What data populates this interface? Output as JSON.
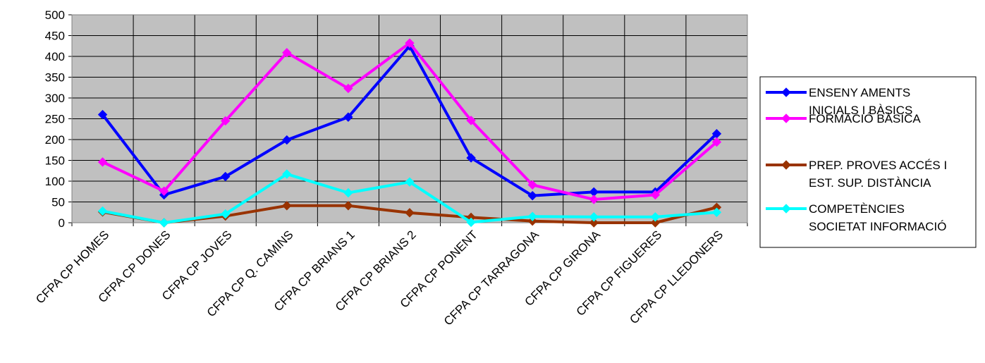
{
  "chart_data": {
    "type": "line",
    "title": "",
    "xlabel": "",
    "ylabel": "",
    "ylim": [
      0,
      500
    ],
    "y_ticks": [
      "0",
      "50",
      "100",
      "150",
      "200",
      "250",
      "300",
      "350",
      "400",
      "450",
      "500"
    ],
    "grid": true,
    "plot_background": "#c0c0c0",
    "legend_position": "right",
    "categories": [
      "CFPA CP HOMES",
      "CFPA CP DONES",
      "CFPA CP JOVES",
      "CFPA CP Q. CAMINS",
      "CFPA CP BRIANS 1",
      "CFPA CP BRIANS 2",
      "CFPA CP PONENT",
      "CFPA CP TARRAGONA",
      "CFPA CP GIRONA",
      "CFPA CP FIGUERES",
      "CFPA CP LLEDONERS"
    ],
    "series": [
      {
        "name": "ENSENYAMENTS INICIALS I BÀSICS",
        "legend_lines": [
          "ENSENY AMENTS",
          "INICIALS I BÀSICS"
        ],
        "color": "#0000ff",
        "values": [
          260,
          67,
          111,
          199,
          254,
          425,
          156,
          65,
          74,
          74,
          214
        ]
      },
      {
        "name": "FORMACIÓ BÀSICA",
        "legend_lines": [
          "FORMACIÓ BÀSICA"
        ],
        "color": "#ff00ff",
        "values": [
          146,
          76,
          245,
          409,
          323,
          432,
          246,
          91,
          56,
          67,
          194
        ]
      },
      {
        "name": "PREP. PROVES ACCÉS I EST. SUP. DISTÀNCIA",
        "legend_lines": [
          "PREP. PROVES ACCÉS I",
          "EST. SUP. DISTÀNCIA"
        ],
        "color": "#993300",
        "values": [
          26,
          0,
          16,
          41,
          41,
          24,
          13,
          4,
          0,
          0,
          37
        ]
      },
      {
        "name": "COMPETÈNCIES SOCIETAT INFORMACIÓ",
        "legend_lines": [
          "COMPETÈNCIES",
          "SOCIETAT INFORMACIÓ"
        ],
        "color": "#00ffff",
        "values": [
          28,
          0,
          21,
          117,
          72,
          98,
          1,
          15,
          14,
          14,
          25
        ]
      }
    ]
  }
}
